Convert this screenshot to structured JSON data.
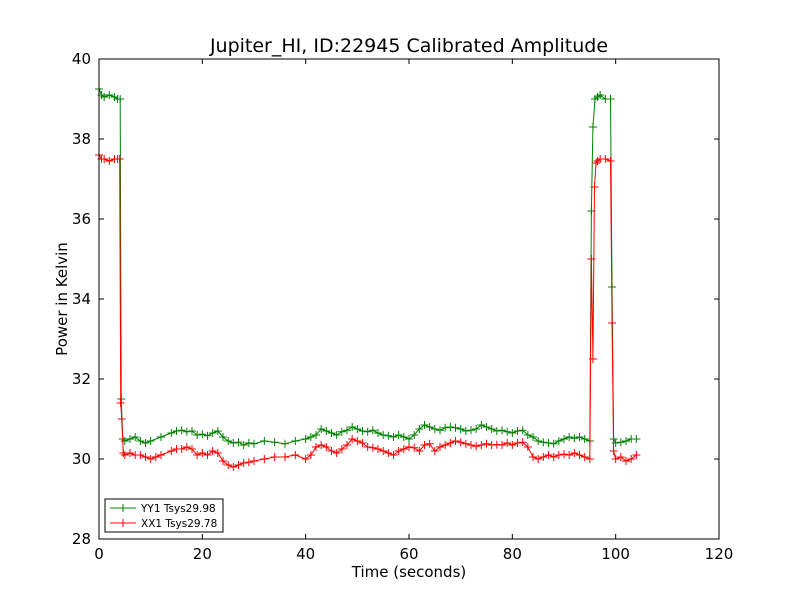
{
  "chart_data": {
    "type": "line",
    "title": "Jupiter_HI, ID:22945 Calibrated Amplitude",
    "xlabel": "Time (seconds)",
    "ylabel": "Power in Kelvin",
    "xlim": [
      0,
      120
    ],
    "ylim": [
      28,
      40
    ],
    "xticks": [
      "0",
      "20",
      "40",
      "60",
      "80",
      "100",
      "120"
    ],
    "yticks": [
      "28",
      "30",
      "32",
      "34",
      "36",
      "38",
      "40"
    ],
    "grid": false,
    "legend_position": "lower-left",
    "marker": "plus",
    "series": [
      {
        "name": "YY1 Tsys29.98",
        "color": "#008000",
        "x": [
          0,
          0.5,
          1,
          2,
          3,
          3.6,
          4.1,
          4.3,
          4.6,
          5,
          6,
          7,
          8,
          9,
          10,
          12,
          14,
          15,
          16,
          17,
          18,
          19,
          20,
          21,
          22,
          23,
          24,
          25,
          26,
          27,
          28,
          29,
          30,
          32,
          34,
          36,
          38,
          40,
          41,
          42,
          43,
          44,
          45,
          46,
          47,
          48,
          49,
          50,
          51,
          52,
          53,
          54,
          55,
          56,
          57,
          58,
          59,
          60,
          61,
          62,
          63,
          64,
          65,
          66,
          67,
          68,
          69,
          70,
          71,
          72,
          73,
          74,
          75,
          76,
          77,
          78,
          79,
          80,
          81,
          82,
          83,
          84,
          85,
          86,
          87,
          88,
          89,
          90,
          91,
          92,
          93,
          94,
          95,
          95.3,
          95.6,
          96,
          96.5,
          97,
          98,
          99,
          99.3,
          99.6,
          100,
          101,
          102,
          103,
          104
        ],
        "y": [
          39.25,
          39.1,
          39.05,
          39.1,
          39.05,
          39.0,
          39.0,
          31.5,
          30.5,
          30.45,
          30.5,
          30.55,
          30.45,
          30.4,
          30.45,
          30.55,
          30.65,
          30.7,
          30.72,
          30.68,
          30.7,
          30.6,
          30.62,
          30.58,
          30.65,
          30.7,
          30.55,
          30.45,
          30.4,
          30.42,
          30.35,
          30.4,
          30.38,
          30.45,
          30.42,
          30.38,
          30.45,
          30.5,
          30.55,
          30.6,
          30.75,
          30.7,
          30.65,
          30.6,
          30.68,
          30.72,
          30.8,
          30.75,
          30.7,
          30.68,
          30.72,
          30.65,
          30.6,
          30.58,
          30.55,
          30.6,
          30.55,
          30.5,
          30.6,
          30.75,
          30.85,
          30.8,
          30.75,
          30.72,
          30.78,
          30.8,
          30.78,
          30.75,
          30.7,
          30.72,
          30.75,
          30.85,
          30.8,
          30.75,
          30.7,
          30.72,
          30.68,
          30.65,
          30.7,
          30.72,
          30.6,
          30.55,
          30.45,
          30.42,
          30.4,
          30.38,
          30.45,
          30.5,
          30.55,
          30.52,
          30.55,
          30.5,
          30.45,
          36.2,
          38.3,
          39.0,
          39.05,
          39.1,
          39.0,
          39.0,
          34.3,
          30.5,
          30.4,
          30.42,
          30.45,
          30.5,
          30.5
        ]
      },
      {
        "name": "XX1 Tsys29.78",
        "color": "#ff0000",
        "x": [
          0,
          0.5,
          1,
          2,
          3,
          3.6,
          4.0,
          4.2,
          4.4,
          4.7,
          5,
          6,
          7,
          8,
          9,
          10,
          11,
          12,
          14,
          15,
          16,
          17,
          18,
          19,
          20,
          21,
          22,
          23,
          24,
          25,
          26,
          27,
          28,
          29,
          30,
          32,
          34,
          36,
          38,
          40,
          41,
          42,
          43,
          44,
          45,
          46,
          47,
          48,
          49,
          50,
          51,
          52,
          53,
          54,
          55,
          56,
          57,
          58,
          59,
          60,
          61,
          62,
          63,
          64,
          65,
          66,
          67,
          68,
          69,
          70,
          71,
          72,
          73,
          74,
          75,
          76,
          77,
          78,
          79,
          80,
          81,
          82,
          83,
          84,
          85,
          86,
          87,
          88,
          89,
          90,
          91,
          92,
          93,
          94,
          95,
          95.3,
          95.6,
          95.9,
          96.2,
          96.5,
          97,
          98,
          99,
          99.3,
          99.6,
          100,
          101,
          102,
          103,
          104
        ],
        "y": [
          37.6,
          37.5,
          37.5,
          37.45,
          37.5,
          37.5,
          37.5,
          31.4,
          31.0,
          30.15,
          30.1,
          30.15,
          30.1,
          30.1,
          30.05,
          30.0,
          30.05,
          30.1,
          30.2,
          30.25,
          30.25,
          30.3,
          30.25,
          30.1,
          30.15,
          30.1,
          30.2,
          30.15,
          29.95,
          29.85,
          29.8,
          29.85,
          29.9,
          29.92,
          29.95,
          30.0,
          30.05,
          30.05,
          30.1,
          30.0,
          30.1,
          30.3,
          30.35,
          30.3,
          30.2,
          30.15,
          30.25,
          30.35,
          30.5,
          30.45,
          30.4,
          30.3,
          30.28,
          30.25,
          30.2,
          30.15,
          30.1,
          30.2,
          30.25,
          30.3,
          30.28,
          30.2,
          30.35,
          30.38,
          30.2,
          30.3,
          30.35,
          30.4,
          30.45,
          30.42,
          30.38,
          30.35,
          30.32,
          30.35,
          30.38,
          30.35,
          30.36,
          30.35,
          30.4,
          30.35,
          30.4,
          30.42,
          30.3,
          30.05,
          30.0,
          30.05,
          30.1,
          30.05,
          30.1,
          30.12,
          30.1,
          30.15,
          30.1,
          30.05,
          30.0,
          35.0,
          32.5,
          36.8,
          37.4,
          37.45,
          37.5,
          37.5,
          37.45,
          33.4,
          30.2,
          30.0,
          30.05,
          29.95,
          30.0,
          30.1
        ]
      }
    ]
  }
}
